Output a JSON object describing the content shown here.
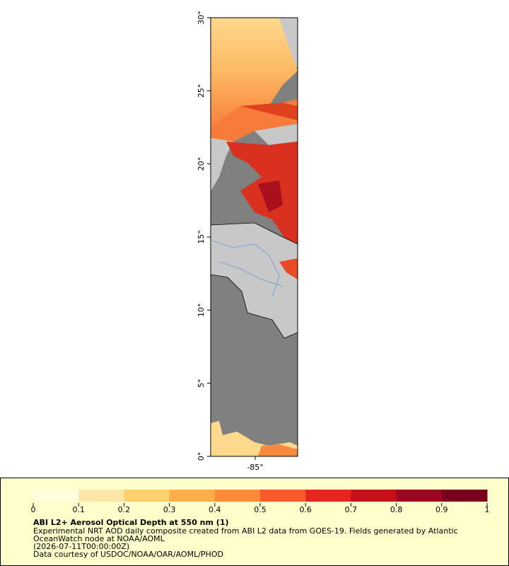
{
  "map": {
    "lat_range": [
      0,
      30
    ],
    "lon_range": [
      -88.05,
      -82.1
    ],
    "lat_ticks": [
      {
        "value": 0,
        "label": "0°"
      },
      {
        "value": 5,
        "label": "5°"
      },
      {
        "value": 10,
        "label": "10°"
      },
      {
        "value": 15,
        "label": "15°"
      },
      {
        "value": 20,
        "label": "20°"
      },
      {
        "value": 25,
        "label": "25°"
      },
      {
        "value": 30,
        "label": "30°"
      }
    ],
    "lon_ticks": [
      {
        "value": -85,
        "label": "-85°"
      }
    ]
  },
  "legend": {
    "title": "ABI L2+ Aerosol Optical Depth at 550 nm (1)",
    "lines": [
      "Experimental NRT AOD daily composite created from ABI L2 data from GOES-19. Fields generated by Atlantic",
      "OceanWatch node at NOAA/AOML",
      "(2026-07-11T00:00:00Z)",
      "Data courtesy of USDOC/NOAA/OAR/AOML/PHOD"
    ],
    "colorbar": {
      "range": [
        0,
        1
      ],
      "ticks": [
        0,
        0.1,
        0.2,
        0.3,
        0.4,
        0.5,
        0.6,
        0.7,
        0.8,
        0.9,
        1
      ],
      "colors": [
        "#ffffe0",
        "#fee6a6",
        "#fed06e",
        "#fdae4b",
        "#fc8a3a",
        "#f85a2c",
        "#e3271f",
        "#c4101b",
        "#9b0620",
        "#7a0020"
      ]
    }
  }
}
